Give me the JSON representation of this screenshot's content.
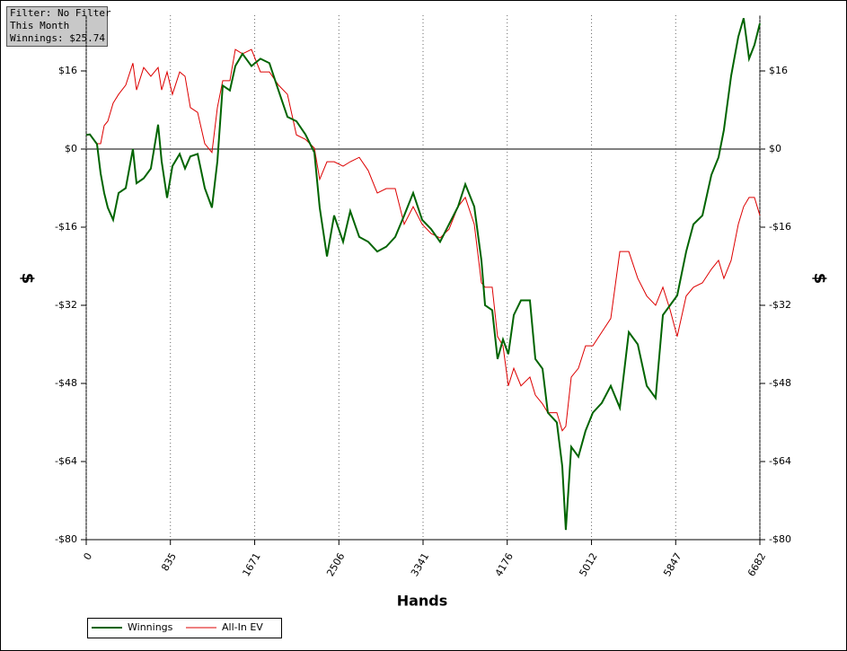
{
  "chart_data": {
    "type": "line",
    "info_box": [
      "Filter: No Filter",
      "This Month",
      "Winnings: $25.74"
    ],
    "xlabel": "Hands",
    "ylabel": "$",
    "x": [
      0,
      36,
      107,
      143,
      178,
      214,
      267,
      321,
      392,
      463,
      499,
      570,
      641,
      713,
      748,
      802,
      855,
      927,
      980,
      1033,
      1105,
      1176,
      1247,
      1301,
      1354,
      1425,
      1479,
      1550,
      1639,
      1728,
      1817,
      1907,
      1996,
      2085,
      2174,
      2263,
      2316,
      2388,
      2459,
      2548,
      2619,
      2708,
      2797,
      2887,
      2976,
      3065,
      3154,
      3243,
      3332,
      3421,
      3510,
      3599,
      3688,
      3760,
      3849,
      3920,
      3956,
      4027,
      4080,
      4134,
      4187,
      4241,
      4312,
      4401,
      4455,
      4526,
      4579,
      4668,
      4722,
      4757,
      4811,
      4882,
      4953,
      5025,
      5114,
      5203,
      5293,
      5382,
      5471,
      5560,
      5648,
      5720,
      5791,
      5862,
      5951,
      6023,
      6112,
      6201,
      6272,
      6325,
      6397,
      6468,
      6521,
      6575,
      6628,
      6682
    ],
    "series": [
      {
        "name": "Winnings",
        "color": "#006400",
        "values": [
          2.9,
          3,
          1,
          -5,
          -9,
          -12,
          -14.5,
          -9,
          -8,
          0,
          -7,
          -6,
          -4,
          5,
          -2.5,
          -10,
          -3.5,
          -1,
          -4,
          -1.5,
          -1,
          -8,
          -12,
          -2.5,
          13,
          12,
          17,
          19.5,
          17,
          18.5,
          17.6,
          12,
          6.6,
          5.7,
          3,
          -0.7,
          -12,
          -22,
          -13.6,
          -19,
          -12.7,
          -18,
          -19,
          -21,
          -20,
          -18,
          -13.6,
          -9,
          -14.5,
          -16.4,
          -19,
          -15.4,
          -11.8,
          -7.2,
          -11.8,
          -22.8,
          -32,
          -33,
          -43,
          -39,
          -42,
          -34,
          -31,
          -31,
          -43,
          -45,
          -54,
          -56,
          -65,
          -78,
          -61,
          -63,
          -57.7,
          -54,
          -52,
          -48.5,
          -53,
          -37.5,
          -40,
          -48.5,
          -51,
          -34,
          -32,
          -30,
          -21,
          -15.4,
          -13.6,
          -5.3,
          -1.7,
          3.9,
          15,
          23,
          26.8,
          18.5,
          21.3,
          25.74
        ]
      },
      {
        "name": "All-In EV",
        "color": "#dd0000",
        "values": [
          2.9,
          2.9,
          1.1,
          1.1,
          4.8,
          5.7,
          9.4,
          11.2,
          13.1,
          17.6,
          12.1,
          16.7,
          14.9,
          16.7,
          12.1,
          15.8,
          11.2,
          15.8,
          14.9,
          8.5,
          7.5,
          1.1,
          -0.7,
          8.5,
          14,
          14,
          20.4,
          19.5,
          20.4,
          15.8,
          15.8,
          13.1,
          11.2,
          2.9,
          2,
          0.2,
          -6.2,
          -2.6,
          -2.6,
          -3.5,
          -2.6,
          -1.7,
          -4.4,
          -9,
          -8.1,
          -8.1,
          -15.4,
          -11.8,
          -15.4,
          -17.3,
          -18.2,
          -16.4,
          -11.8,
          -9.9,
          -15.4,
          -27.4,
          -28.3,
          -28.3,
          -38.4,
          -40.3,
          -48.5,
          -44.9,
          -48.5,
          -46.7,
          -50.4,
          -52.2,
          -54,
          -54,
          -57.7,
          -56.8,
          -46.7,
          -44.9,
          -40.3,
          -40.3,
          -37.5,
          -34.7,
          -21,
          -21,
          -26.5,
          -30.1,
          -32,
          -28.3,
          -32.9,
          -38.4,
          -30.1,
          -28.3,
          -27.4,
          -24.6,
          -22.8,
          -26.5,
          -22.8,
          -15.4,
          -11.8,
          -9.9,
          -9.9,
          -13.6
        ]
      }
    ],
    "xlim": [
      0,
      6682
    ],
    "xticks": [
      0,
      835,
      1671,
      2506,
      3341,
      4176,
      5012,
      5847,
      6682
    ],
    "ylim": [
      -80,
      27.4
    ],
    "yticks": [
      {
        "value": -80,
        "label": "-$80"
      },
      {
        "value": -64,
        "label": "-$64"
      },
      {
        "value": -48,
        "label": "-$48"
      },
      {
        "value": -32,
        "label": "-$32"
      },
      {
        "value": -16,
        "label": "-$16"
      },
      {
        "value": 0,
        "label": "$0"
      },
      {
        "value": 16,
        "label": "$16"
      }
    ],
    "grid": true,
    "legend": "bottom-left"
  }
}
